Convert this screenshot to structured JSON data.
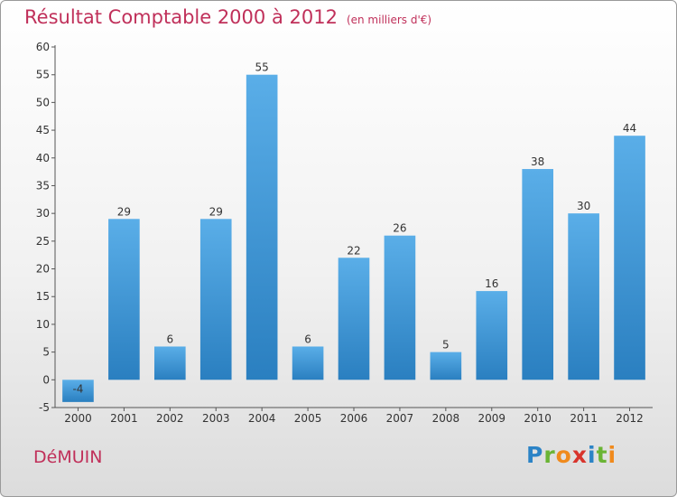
{
  "title": "Résultat Comptable 2000 à 2012",
  "subtitle": "(en milliers d'€)",
  "commune": "DéMUIN",
  "logo": {
    "letters": [
      {
        "ch": "P",
        "color": "#2b83c6"
      },
      {
        "ch": "r",
        "color": "#6ab434"
      },
      {
        "ch": "o",
        "color": "#f08a1c"
      },
      {
        "ch": "x",
        "color": "#d8342c"
      },
      {
        "ch": "i",
        "color": "#2b83c6"
      },
      {
        "ch": "t",
        "color": "#6ab434"
      },
      {
        "ch": "i",
        "color": "#f08a1c"
      }
    ]
  },
  "chart_data": {
    "type": "bar",
    "title": "Résultat Comptable 2000 à 2012",
    "subtitle": "(en milliers d'€)",
    "categories": [
      "2000",
      "2001",
      "2002",
      "2003",
      "2004",
      "2005",
      "2006",
      "2007",
      "2008",
      "2009",
      "2010",
      "2011",
      "2012"
    ],
    "values": [
      -4,
      29,
      6,
      29,
      55,
      6,
      22,
      26,
      5,
      16,
      38,
      30,
      44
    ],
    "ylim": [
      -5,
      60
    ],
    "yticks": [
      -5,
      0,
      5,
      10,
      15,
      20,
      25,
      30,
      35,
      40,
      45,
      50,
      55,
      60
    ],
    "grid": false,
    "legend": "none",
    "bar_color_top": "#5aaee8",
    "bar_color_bottom": "#2a7fc0"
  }
}
